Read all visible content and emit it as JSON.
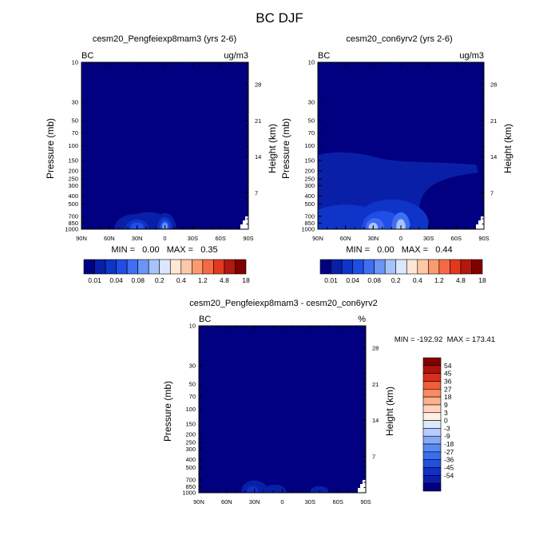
{
  "figure": {
    "title": "BC DJF"
  },
  "legend_colors": {
    "abs_bins": [
      "#000080",
      "#0a1fa8",
      "#0f34c8",
      "#1f4ee6",
      "#3f6ef0",
      "#6a94f5",
      "#a6c4fa",
      "#dbe8fc",
      "#ffe6d6",
      "#fcc8a8",
      "#fb9a72",
      "#f56a44",
      "#e2391e",
      "#b31710",
      "#800000"
    ],
    "diff_bins": [
      "#000080",
      "#0a1fa8",
      "#1030c8",
      "#2050e0",
      "#3a6ef0",
      "#5a8af5",
      "#86aaf8",
      "#b6cdfb",
      "#dce8fd",
      "#fff0e6",
      "#fed2bc",
      "#fcb08e",
      "#fa8a60",
      "#ef5e38",
      "#d8301c",
      "#b0120c",
      "#800000"
    ]
  },
  "chart_data": [
    {
      "type": "heatmap",
      "title": "cesm20_Pengfeiexp8mam3 (yrs 2-6)",
      "left_label": "BC",
      "right_label": "ug/m3",
      "xlabel": "",
      "ylabel": "Pressure (mb)",
      "y2label": "Height (km)",
      "x_ticks": [
        "90N",
        "60N",
        "30N",
        "0",
        "30S",
        "60S",
        "90S"
      ],
      "y_ticks": [
        10,
        30,
        50,
        70,
        100,
        150,
        200,
        250,
        300,
        400,
        500,
        700,
        850,
        1000
      ],
      "y2_ticks": [
        28,
        21,
        14,
        7
      ],
      "ylim": [
        1000,
        10
      ],
      "stats": "MIN =   0.00   MAX =   0.35",
      "colorbar_labels": [
        "0.01",
        "0.04",
        "0.08",
        "0.2",
        "0.4",
        "1.2",
        "4.8",
        "18"
      ],
      "background_level": 0,
      "features": [
        {
          "lat": 0,
          "p": 960,
          "w": 12,
          "h": 160,
          "level": 1
        },
        {
          "lat": 32,
          "p": 960,
          "w": 22,
          "h": 150,
          "level": 1
        },
        {
          "lat": 18,
          "p": 960,
          "w": 26,
          "h": 170,
          "level": 1
        },
        {
          "lat": 0,
          "p": 950,
          "w": 8,
          "h": 110,
          "level": 2
        },
        {
          "lat": 30,
          "p": 960,
          "w": 12,
          "h": 90,
          "level": 2
        },
        {
          "lat": 0,
          "p": 930,
          "w": 5,
          "h": 70,
          "level": 3
        },
        {
          "lat": 30,
          "p": 950,
          "w": 7,
          "h": 55,
          "level": 3
        },
        {
          "lat": 0,
          "p": 920,
          "w": 3,
          "h": 40,
          "level": 5
        }
      ]
    },
    {
      "type": "heatmap",
      "title": "cesm20_con6yrv2 (yrs 2-6)",
      "left_label": "BC",
      "right_label": "ug/m3",
      "xlabel": "",
      "ylabel": "Pressure (mb)",
      "y2label": "Height (km)",
      "x_ticks": [
        "90N",
        "60N",
        "30N",
        "0",
        "30S",
        "60S",
        "90S"
      ],
      "y_ticks": [
        10,
        30,
        50,
        70,
        100,
        150,
        200,
        250,
        300,
        400,
        500,
        700,
        850,
        1000
      ],
      "y2_ticks": [
        28,
        21,
        14,
        7
      ],
      "ylim": [
        1000,
        10
      ],
      "stats": "MIN =   0.00   MAX =   0.44",
      "colorbar_labels": [
        "0.01",
        "0.04",
        "0.08",
        "0.2",
        "0.4",
        "1.2",
        "4.8",
        "18"
      ],
      "background_level": 0,
      "features": [
        {
          "region": "upper_band",
          "p_top": 130,
          "p_bottom": 600,
          "lat_from": 90,
          "lat_to": -30,
          "level": 1
        },
        {
          "lat": 60,
          "p": 800,
          "w": 40,
          "h": 180,
          "level": 2
        },
        {
          "lat": 10,
          "p": 850,
          "w": 40,
          "h": 260,
          "level": 2
        },
        {
          "lat": 20,
          "p": 930,
          "w": 22,
          "h": 170,
          "level": 3
        },
        {
          "lat": 0,
          "p": 940,
          "w": 10,
          "h": 160,
          "level": 4
        },
        {
          "lat": 28,
          "p": 950,
          "w": 10,
          "h": 100,
          "level": 4
        },
        {
          "lat": 0,
          "p": 930,
          "w": 5,
          "h": 80,
          "level": 6
        },
        {
          "lat": 30,
          "p": 950,
          "w": 5,
          "h": 50,
          "level": 6
        }
      ]
    },
    {
      "type": "heatmap",
      "title": "cesm20_Pengfeiexp8mam3 - cesm20_con6yrv2",
      "left_label": "BC",
      "right_label": "%",
      "xlabel": "",
      "ylabel": "Pressure (mb)",
      "y2label": "Height (km)",
      "x_ticks": [
        "90N",
        "60N",
        "30N",
        "0",
        "30S",
        "60S",
        "90S"
      ],
      "y_ticks": [
        10,
        30,
        50,
        70,
        100,
        150,
        200,
        250,
        300,
        400,
        500,
        700,
        850,
        1000
      ],
      "y2_ticks": [
        28,
        21,
        14,
        7
      ],
      "ylim": [
        1000,
        10
      ],
      "stats": "MIN = -192.92  MAX = 173.41",
      "colorbar_labels": [
        "54",
        "45",
        "36",
        "27",
        "18",
        "9",
        "3",
        "0",
        "-3",
        "-9",
        "-18",
        "-27",
        "-36",
        "-45",
        "-54"
      ],
      "background_level": 0,
      "features": [
        {
          "lat": 30,
          "p": 940,
          "w": 14,
          "h": 110,
          "level": 1
        },
        {
          "lat": 8,
          "p": 955,
          "w": 12,
          "h": 70,
          "level": 1
        },
        {
          "lat": -40,
          "p": 970,
          "w": 10,
          "h": 60,
          "level": 1
        },
        {
          "lat": 32,
          "p": 940,
          "w": 6,
          "h": 50,
          "level": 2
        }
      ]
    }
  ]
}
